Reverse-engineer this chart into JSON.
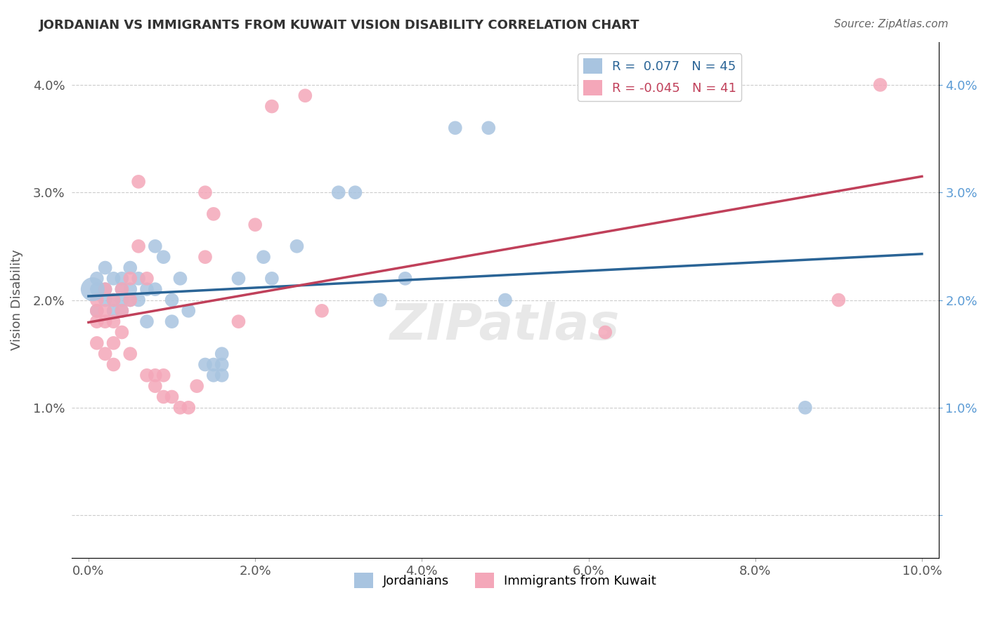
{
  "title": "JORDANIAN VS IMMIGRANTS FROM KUWAIT VISION DISABILITY CORRELATION CHART",
  "source": "Source: ZipAtlas.com",
  "ylabel": "Vision Disability",
  "x_ticks": [
    0.0,
    0.02,
    0.04,
    0.06,
    0.08,
    0.1
  ],
  "x_tick_labels": [
    "0.0%",
    "2.0%",
    "4.0%",
    "6.0%",
    "8.0%",
    "10.0%"
  ],
  "y_ticks": [
    0.0,
    0.01,
    0.02,
    0.03,
    0.04
  ],
  "y_tick_labels": [
    "",
    "1.0%",
    "2.0%",
    "3.0%",
    "4.0%"
  ],
  "xlim": [
    -0.002,
    0.102
  ],
  "ylim": [
    -0.004,
    0.044
  ],
  "blue_R": 0.077,
  "blue_N": 45,
  "pink_R": -0.045,
  "pink_N": 41,
  "blue_color": "#a8c4e0",
  "pink_color": "#f4a7b9",
  "blue_line_color": "#2a6496",
  "pink_line_color": "#c0405a",
  "watermark": "ZIPatlas",
  "jordanians_x": [
    0.001,
    0.001,
    0.001,
    0.002,
    0.002,
    0.002,
    0.003,
    0.003,
    0.003,
    0.004,
    0.004,
    0.004,
    0.004,
    0.005,
    0.005,
    0.005,
    0.006,
    0.006,
    0.007,
    0.007,
    0.008,
    0.008,
    0.009,
    0.01,
    0.01,
    0.011,
    0.012,
    0.014,
    0.015,
    0.015,
    0.016,
    0.016,
    0.016,
    0.018,
    0.021,
    0.022,
    0.025,
    0.03,
    0.032,
    0.035,
    0.038,
    0.044,
    0.048,
    0.05,
    0.086
  ],
  "jordanians_y": [
    0.021,
    0.022,
    0.019,
    0.02,
    0.021,
    0.023,
    0.02,
    0.022,
    0.019,
    0.022,
    0.021,
    0.02,
    0.019,
    0.023,
    0.021,
    0.02,
    0.02,
    0.022,
    0.021,
    0.018,
    0.025,
    0.021,
    0.024,
    0.02,
    0.018,
    0.022,
    0.019,
    0.014,
    0.013,
    0.014,
    0.013,
    0.014,
    0.015,
    0.022,
    0.024,
    0.022,
    0.025,
    0.03,
    0.03,
    0.02,
    0.022,
    0.036,
    0.036,
    0.02,
    0.01
  ],
  "kuwait_x": [
    0.001,
    0.001,
    0.001,
    0.001,
    0.002,
    0.002,
    0.002,
    0.002,
    0.003,
    0.003,
    0.003,
    0.003,
    0.004,
    0.004,
    0.004,
    0.005,
    0.005,
    0.005,
    0.006,
    0.006,
    0.007,
    0.007,
    0.008,
    0.008,
    0.009,
    0.009,
    0.01,
    0.011,
    0.012,
    0.013,
    0.014,
    0.014,
    0.015,
    0.018,
    0.02,
    0.022,
    0.026,
    0.028,
    0.062,
    0.09,
    0.095
  ],
  "kuwait_y": [
    0.02,
    0.019,
    0.018,
    0.016,
    0.021,
    0.019,
    0.018,
    0.015,
    0.02,
    0.018,
    0.016,
    0.014,
    0.021,
    0.019,
    0.017,
    0.022,
    0.02,
    0.015,
    0.031,
    0.025,
    0.022,
    0.013,
    0.013,
    0.012,
    0.013,
    0.011,
    0.011,
    0.01,
    0.01,
    0.012,
    0.024,
    0.03,
    0.028,
    0.018,
    0.027,
    0.038,
    0.039,
    0.019,
    0.017,
    0.02,
    0.04
  ]
}
